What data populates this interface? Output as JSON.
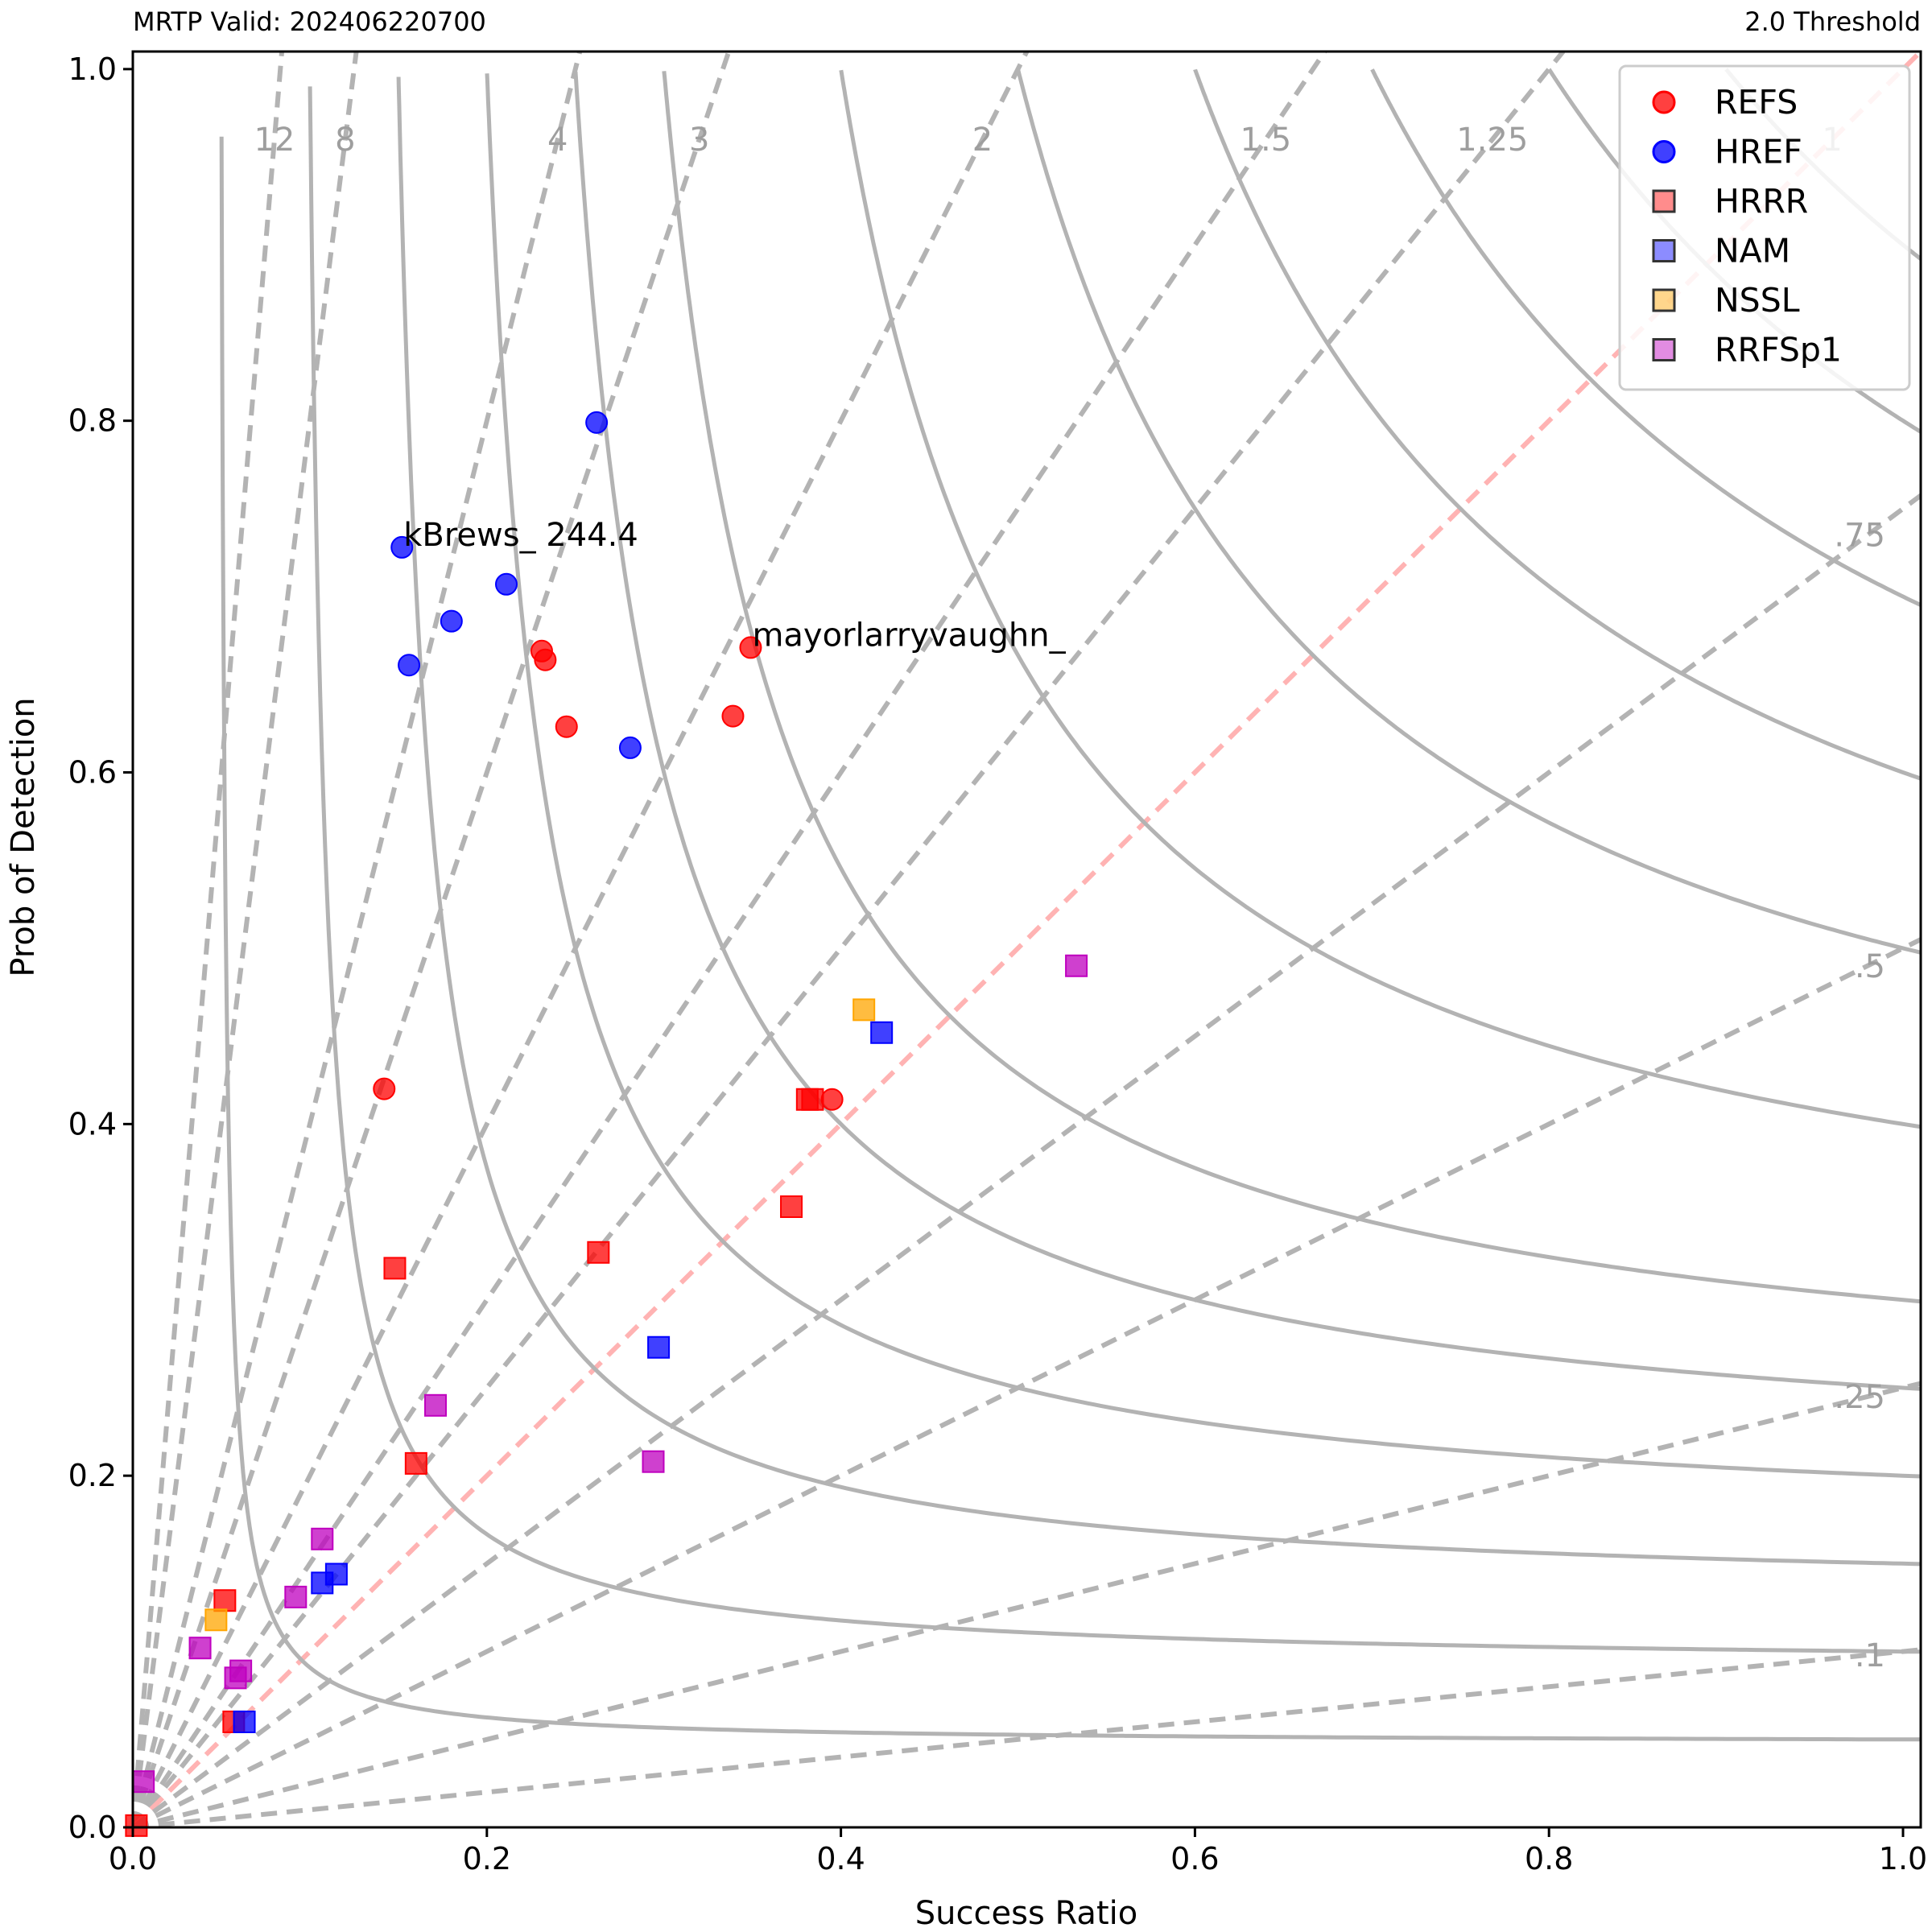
{
  "chart_data": {
    "type": "scatter",
    "title_left": "MRTP Valid: 202406220700",
    "title_right": "2.0 Threshold",
    "xlabel": "Success Ratio",
    "ylabel": "Prob of Detection",
    "xlim": [
      0,
      1.01
    ],
    "ylim": [
      0,
      1.01
    ],
    "x_ticks": [
      "0.0",
      "0.2",
      "0.4",
      "0.6",
      "0.8",
      "1.0"
    ],
    "y_ticks": [
      "0.0",
      "0.2",
      "0.4",
      "0.6",
      "0.8",
      "1.0"
    ],
    "bias_lines": [
      {
        "label": "12",
        "value": 12
      },
      {
        "label": "8",
        "value": 8
      },
      {
        "label": "4",
        "value": 4
      },
      {
        "label": "3",
        "value": 3
      },
      {
        "label": "2",
        "value": 2
      },
      {
        "label": "1.5",
        "value": 1.5
      },
      {
        "label": "1.25",
        "value": 1.25
      },
      {
        "label": "1",
        "value": 1
      },
      {
        "label": ".75",
        "value": 0.75
      },
      {
        "label": ".5",
        "value": 0.5
      },
      {
        "label": ".25",
        "value": 0.25
      },
      {
        "label": ".1",
        "value": 0.1
      }
    ],
    "csi_levels": [
      0.05,
      0.1,
      0.15,
      0.2,
      0.25,
      0.3,
      0.4,
      0.5,
      0.6,
      0.7,
      0.8,
      0.9
    ],
    "legend_position": "top-right",
    "grid": false,
    "series": [
      {
        "name": "REFS",
        "marker": "circle",
        "color": "#ff0000",
        "points": [
          [
            0.349,
            0.671
          ],
          [
            0.339,
            0.632
          ],
          [
            0.231,
            0.669
          ],
          [
            0.233,
            0.664
          ],
          [
            0.245,
            0.626
          ],
          [
            0.142,
            0.42
          ],
          [
            0.395,
            0.414
          ]
        ]
      },
      {
        "name": "HREF",
        "marker": "circle",
        "color": "#0000ff",
        "points": [
          [
            0.262,
            0.799
          ],
          [
            0.152,
            0.728
          ],
          [
            0.211,
            0.707
          ],
          [
            0.18,
            0.686
          ],
          [
            0.156,
            0.661
          ],
          [
            0.281,
            0.614
          ]
        ]
      },
      {
        "name": "HRRR",
        "marker": "square",
        "color": "#ff0000",
        "points": [
          [
            0.381,
            0.414
          ],
          [
            0.384,
            0.414
          ],
          [
            0.372,
            0.353
          ],
          [
            0.263,
            0.327
          ],
          [
            0.148,
            0.318
          ],
          [
            0.16,
            0.207
          ],
          [
            0.052,
            0.129
          ],
          [
            0.057,
            0.06
          ],
          [
            0.002,
            0.001
          ]
        ]
      },
      {
        "name": "NAM",
        "marker": "square",
        "color": "#0000ff",
        "points": [
          [
            0.423,
            0.452
          ],
          [
            0.297,
            0.273
          ],
          [
            0.115,
            0.144
          ],
          [
            0.107,
            0.139
          ],
          [
            0.063,
            0.06
          ]
        ]
      },
      {
        "name": "NSSL",
        "marker": "square",
        "color": "#ffa500",
        "points": [
          [
            0.413,
            0.465
          ],
          [
            0.047,
            0.118
          ]
        ]
      },
      {
        "name": "RRFSp1",
        "marker": "square",
        "color": "#bf00bf",
        "points": [
          [
            0.533,
            0.49
          ],
          [
            0.171,
            0.24
          ],
          [
            0.294,
            0.208
          ],
          [
            0.107,
            0.164
          ],
          [
            0.092,
            0.131
          ],
          [
            0.038,
            0.102
          ],
          [
            0.061,
            0.089
          ],
          [
            0.058,
            0.085
          ],
          [
            0.006,
            0.026
          ]
        ]
      }
    ],
    "annotations": [
      {
        "text": "kBrews_ 244.4",
        "x": 0.152,
        "y": 0.728
      },
      {
        "text": "mayorlarryvaughn_",
        "x": 0.349,
        "y": 0.671
      }
    ]
  }
}
